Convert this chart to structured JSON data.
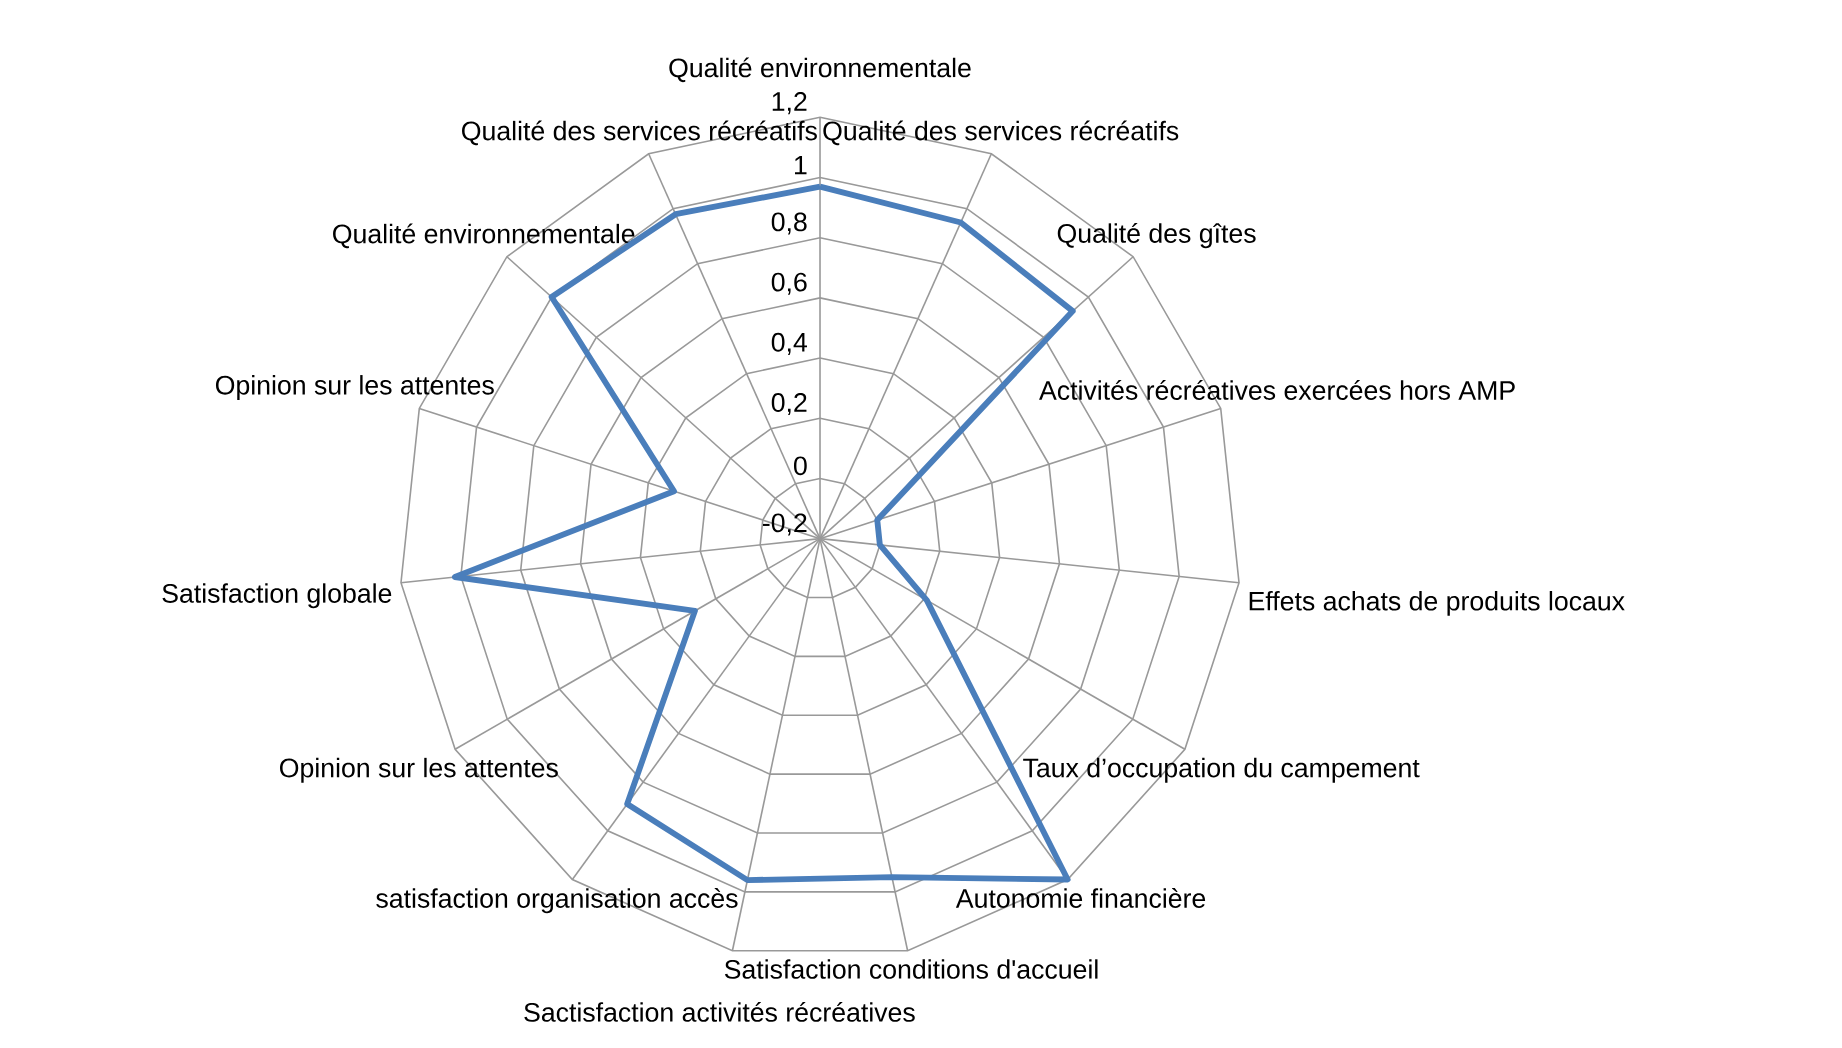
{
  "chart_data": {
    "type": "radar",
    "categories": [
      "Qualité environnementale",
      "Qualité des services récréatifs",
      "Qualité des gîtes",
      "Activités récréatives exercées hors AMP",
      "Effets achats de produits locaux",
      "Taux d’occupation du campement",
      "Autonomie financière",
      "Satisfaction conditions d'accueil",
      "Sactisfaction activités récréatives",
      "satisfaction organisation accès",
      "Opinion sur les attentes",
      "Satisfaction globale",
      "Opinion sur les attentes",
      "Qualité environnementale",
      "Qualité des services récréatifs"
    ],
    "series": [
      {
        "color": "#4a7ebb",
        "values": [
          0.97,
          0.95,
          0.93,
          0.0,
          0.0,
          0.21,
          1.2,
          0.95,
          0.96,
          0.89,
          0.28,
          1.02,
          0.31,
          1.0,
          0.98
        ]
      }
    ],
    "ylim": [
      -0.2,
      1.2
    ],
    "yticks": [
      {
        "value": -0.2,
        "label": "-0,2"
      },
      {
        "value": 0,
        "label": "0"
      },
      {
        "value": 0.2,
        "label": "0,2"
      },
      {
        "value": 0.4,
        "label": "0,4"
      },
      {
        "value": 0.6,
        "label": "0,6"
      },
      {
        "value": 0.8,
        "label": "0,8"
      },
      {
        "value": 1,
        "label": "1"
      },
      {
        "value": 1.2,
        "label": "1,2"
      }
    ],
    "grid": true
  }
}
